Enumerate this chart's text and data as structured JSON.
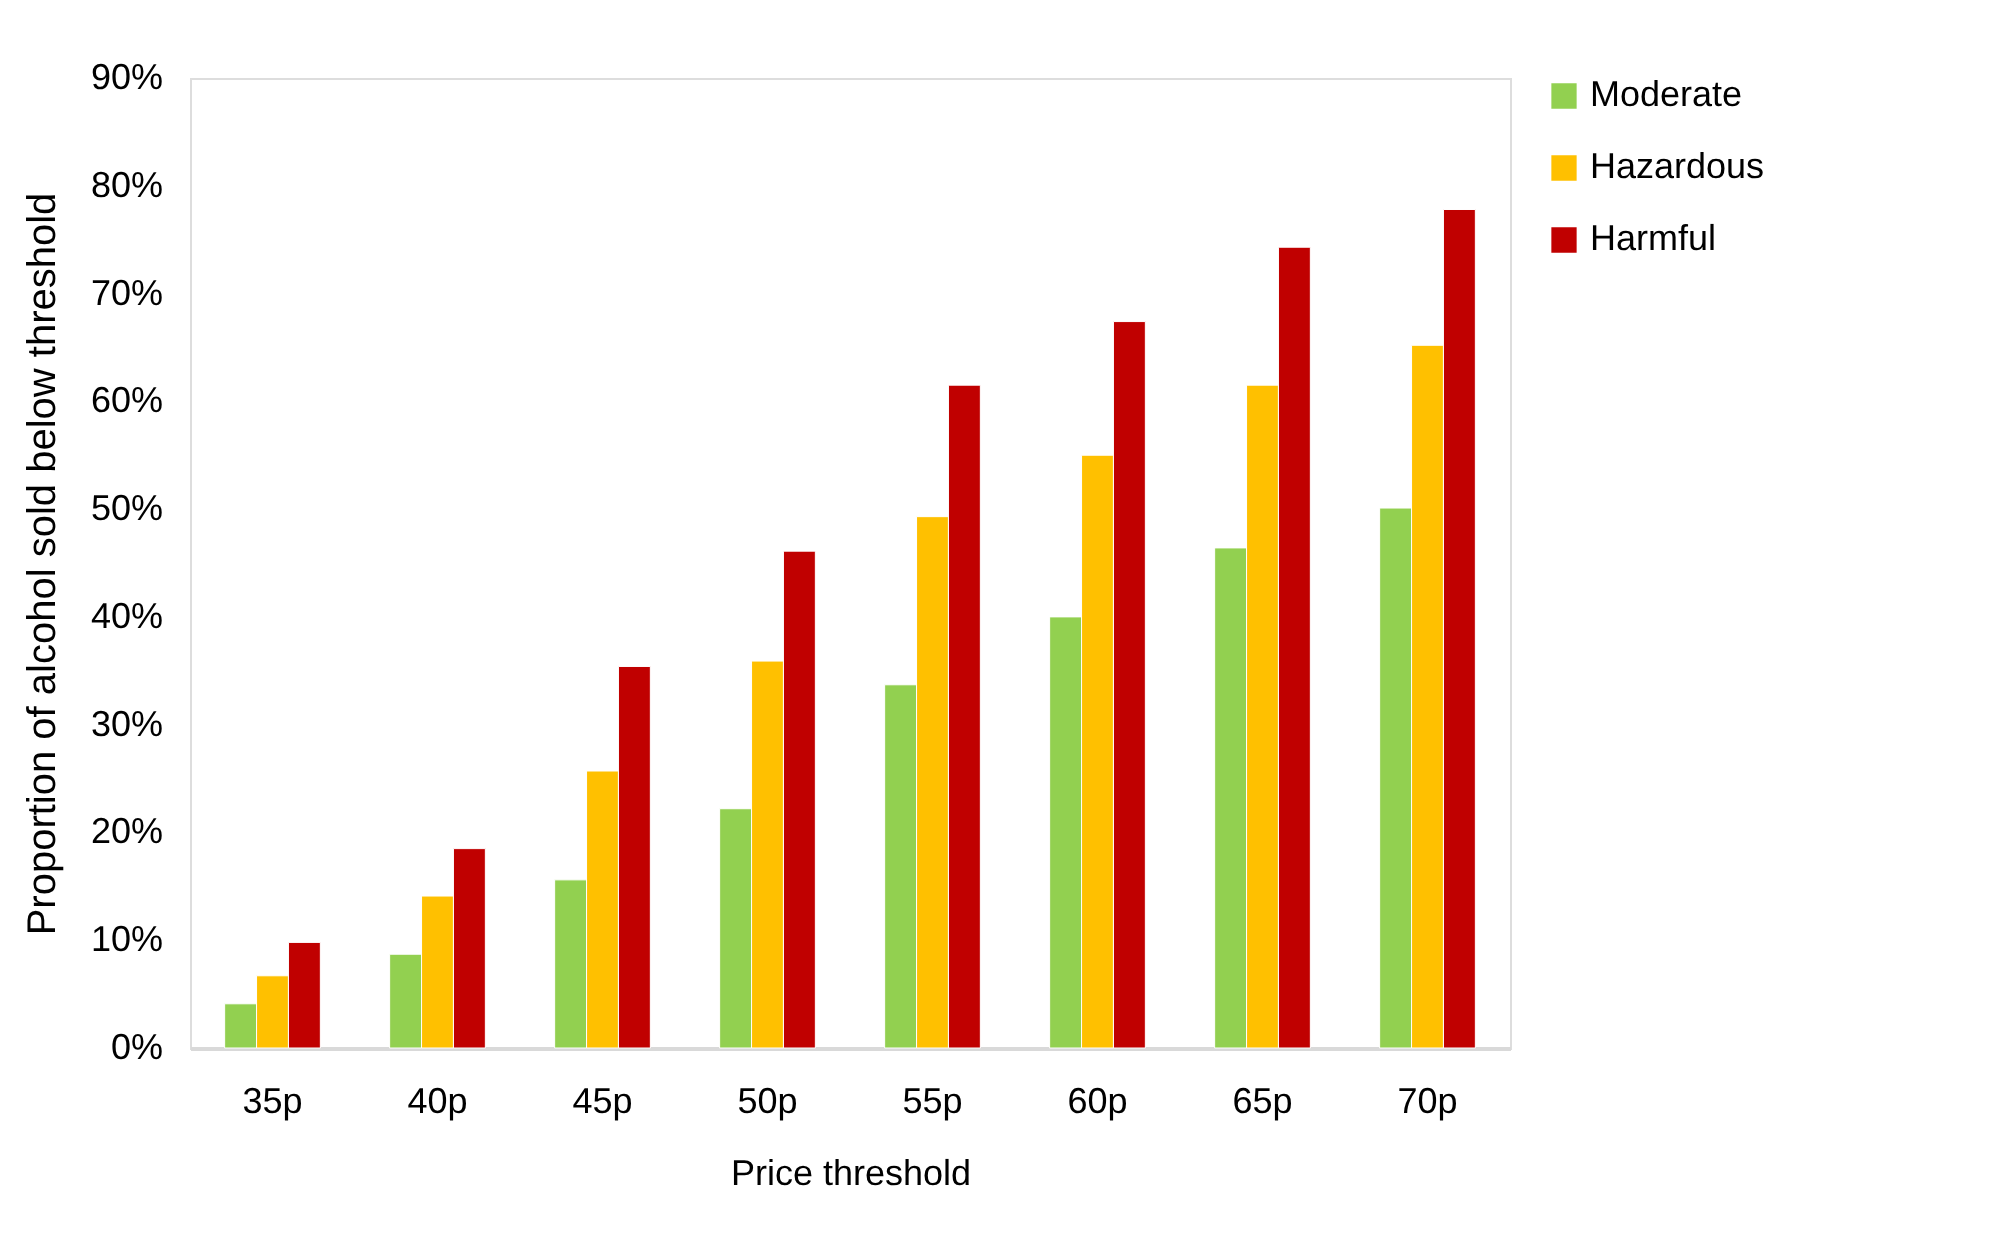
{
  "chart_data": {
    "type": "bar",
    "xlabel": "Price threshold",
    "ylabel": "Proportion of alcohol sold below threshold",
    "categories": [
      "35p",
      "40p",
      "45p",
      "50p",
      "55p",
      "60p",
      "65p",
      "70p"
    ],
    "series": [
      {
        "name": "Moderate",
        "color": "#92d050",
        "values": [
          4.1,
          8.7,
          15.6,
          22.2,
          33.7,
          40.0,
          46.4,
          50.1
        ]
      },
      {
        "name": "Hazardous",
        "color": "#ffc000",
        "values": [
          6.7,
          14.1,
          25.7,
          35.9,
          49.3,
          55.0,
          61.5,
          65.2
        ]
      },
      {
        "name": "Harmful",
        "color": "#c00000",
        "values": [
          9.8,
          18.5,
          35.4,
          46.1,
          61.5,
          67.4,
          74.3,
          77.8
        ]
      }
    ],
    "ylim": [
      0,
      90
    ],
    "yticks": [
      {
        "value": 0,
        "label": "0%"
      },
      {
        "value": 10,
        "label": "10%"
      },
      {
        "value": 20,
        "label": "20%"
      },
      {
        "value": 30,
        "label": "30%"
      },
      {
        "value": 40,
        "label": "40%"
      },
      {
        "value": 50,
        "label": "50%"
      },
      {
        "value": 60,
        "label": "60%"
      },
      {
        "value": 70,
        "label": "70%"
      },
      {
        "value": 80,
        "label": "80%"
      },
      {
        "value": 90,
        "label": "90%"
      }
    ],
    "grid": false,
    "legend": "right"
  }
}
